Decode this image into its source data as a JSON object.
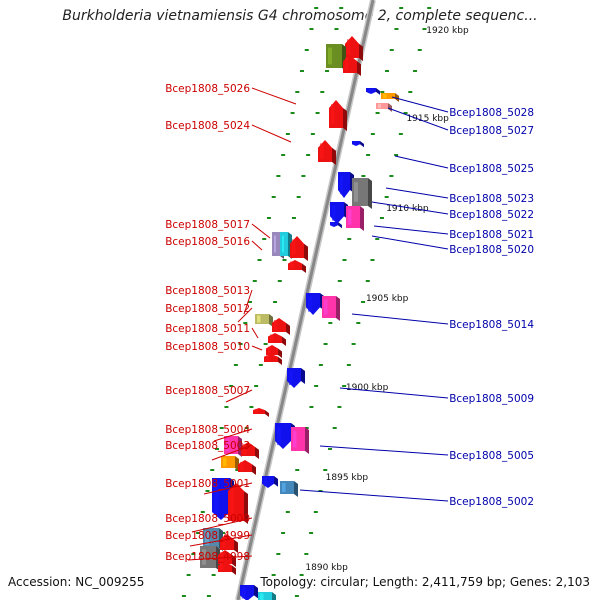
{
  "title": "Burkholderia vietnamiensis G4 chromosome 2, complete sequenc...",
  "footer": {
    "accession": "Accession: NC_009255",
    "topology": "Topology: circular; Length: 2,411,759 bp; Genes: 2,103"
  },
  "colors": {
    "left_label": "#cc0000",
    "right_label": "#0000aa",
    "axis": "#888888",
    "dots": "#1a8a1a"
  },
  "ticks": [
    "1920 kbp",
    "1915 kbp",
    "1910 kbp",
    "1905 kbp",
    "1900 kbp",
    "1895 kbp",
    "1890 kbp"
  ],
  "left_labels": [
    "Bcep1808_5026",
    "Bcep1808_5024",
    "Bcep1808_5017",
    "Bcep1808_5016",
    "Bcep1808_5013",
    "Bcep1808_5012",
    "Bcep1808_5011",
    "Bcep1808_5010",
    "Bcep1808_5007",
    "Bcep1808_5004",
    "Bcep1808_5003",
    "Bcep1808_5001",
    "Bcep1808_5000",
    "Bcep1808_4999",
    "Bcep1808_4998"
  ],
  "right_labels": [
    "Bcep1808_5028",
    "Bcep1808_5027",
    "Bcep1808_5025",
    "Bcep1808_5023",
    "Bcep1808_5022",
    "Bcep1808_5021",
    "Bcep1808_5020",
    "Bcep1808_5014",
    "Bcep1808_5009",
    "Bcep1808_5005",
    "Bcep1808_5002"
  ]
}
